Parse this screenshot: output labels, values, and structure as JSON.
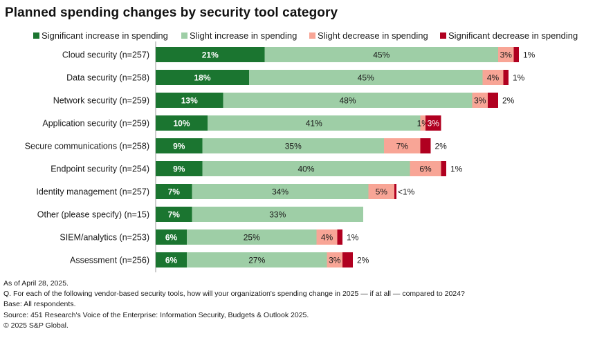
{
  "chart_data": {
    "type": "bar",
    "orientation": "horizontal",
    "stacked": true,
    "title": "Planned spending changes by security tool category",
    "xlabel": "",
    "ylabel": "",
    "xlim": [
      0,
      100
    ],
    "grid": false,
    "legend_position": "top",
    "categories": [
      "Cloud security (n=257)",
      "Data security (n=258)",
      "Network security (n=259)",
      "Application security (n=259)",
      "Secure communications (n=258)",
      "Endpoint security (n=254)",
      "Identity management (n=257)",
      "Other (please specify) (n=15)",
      "SIEM/analytics (n=253)",
      "Assessment (n=256)"
    ],
    "series": [
      {
        "name": "Significant increase in spending",
        "color": "#1b7530",
        "label_color": "#ffffff",
        "values": [
          21,
          18,
          13,
          10,
          9,
          9,
          7,
          7,
          6,
          6
        ],
        "labels": [
          "21%",
          "18%",
          "13%",
          "10%",
          "9%",
          "9%",
          "7%",
          "7%",
          "6%",
          "6%"
        ]
      },
      {
        "name": "Slight increase in spending",
        "color": "#9ecea6",
        "label_color": "#1a1a1a",
        "values": [
          45,
          45,
          48,
          41,
          35,
          40,
          34,
          33,
          25,
          27
        ],
        "labels": [
          "45%",
          "45%",
          "48%",
          "41%",
          "35%",
          "40%",
          "34%",
          "33%",
          "25%",
          "27%"
        ]
      },
      {
        "name": "Slight decrease in spending",
        "color": "#f8a596",
        "label_color": "#1a1a1a",
        "values": [
          3,
          4,
          3,
          1,
          7,
          6,
          5,
          0,
          4,
          3
        ],
        "labels": [
          "3%",
          "4%",
          "3%",
          "1%",
          "7%",
          "6%",
          "5%",
          "",
          "4%",
          "3%"
        ]
      },
      {
        "name": "Significant decrease in spending",
        "color": "#b00020",
        "label_color": "#1a1a1a",
        "values": [
          1,
          1,
          2,
          3,
          2,
          1,
          0.4,
          0,
          1,
          2
        ],
        "labels": [
          "1%",
          "1%",
          "2%",
          "3%",
          "2%",
          "1%",
          "<1%",
          "",
          "1%",
          "2%"
        ],
        "label_inside": [
          false,
          false,
          false,
          true,
          false,
          false,
          false,
          false,
          false,
          false
        ]
      }
    ]
  },
  "footer": {
    "as_of": "As of April 28, 2025.",
    "question": "Q. For each of the following vendor-based security tools, how will your organization's spending change in 2025 — if at all — compared to 2024?",
    "base": "Base: All respondents.",
    "source": "Source: 451 Research's Voice of the Enterprise: Information Security, Budgets & Outlook 2025.",
    "copyright": "© 2025 S&P Global."
  }
}
